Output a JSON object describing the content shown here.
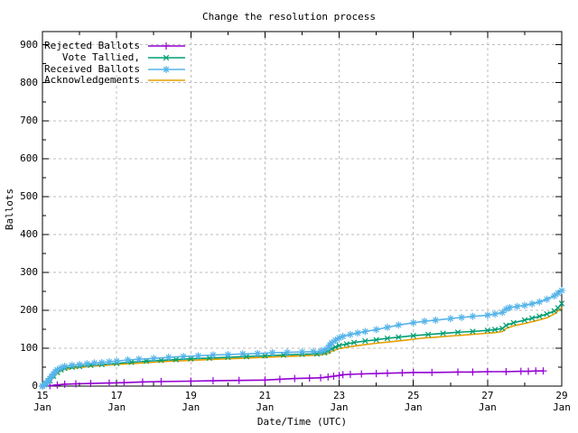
{
  "window": {
    "background": "#ffffff",
    "text_color": "#000000"
  },
  "chart_data": {
    "type": "line",
    "title": "Change the resolution process",
    "xlabel": "Date/Time (UTC)",
    "ylabel": "Ballots",
    "xlim": [
      15,
      29
    ],
    "ylim": [
      0,
      935
    ],
    "grid": {
      "on": true,
      "dashed": true,
      "color": "#bdbdbd"
    },
    "legend_position": "top-left",
    "x_axis": {
      "month_label": "Jan",
      "labeled_days": [
        15,
        17,
        19,
        21,
        23,
        25,
        27,
        29
      ],
      "minor_days": [
        16,
        18,
        20,
        22,
        24,
        26,
        28
      ],
      "grid_days": [
        17,
        19,
        21,
        23,
        25,
        27
      ]
    },
    "y_axis": {
      "major_ticks": [
        0,
        100,
        200,
        300,
        400,
        500,
        600,
        700,
        800,
        900
      ],
      "minor_ticks": [
        50,
        150,
        250,
        350,
        450,
        550,
        650,
        750,
        850
      ],
      "grid_values": [
        100,
        200,
        300,
        400,
        500,
        600,
        700,
        800,
        900
      ]
    },
    "series": [
      {
        "name": "Rejected Ballots",
        "color": "#9400D3",
        "marker": "plus",
        "points": [
          [
            15,
            0
          ],
          [
            15.2,
            1
          ],
          [
            15.4,
            3
          ],
          [
            15.6,
            5
          ],
          [
            15.9,
            6
          ],
          [
            16.3,
            7
          ],
          [
            16.8,
            8
          ],
          [
            17.2,
            9
          ],
          [
            17.7,
            11
          ],
          [
            18.2,
            12
          ],
          [
            19,
            13
          ],
          [
            19.6,
            14
          ],
          [
            20.3,
            15
          ],
          [
            21,
            16
          ],
          [
            21.4,
            18
          ],
          [
            21.8,
            20
          ],
          [
            22.2,
            21
          ],
          [
            22.5,
            22
          ],
          [
            22.7,
            24
          ],
          [
            22.85,
            26
          ],
          [
            23,
            28
          ],
          [
            23.1,
            30
          ],
          [
            23.3,
            31
          ],
          [
            23.6,
            32
          ],
          [
            24,
            33
          ],
          [
            24.3,
            34
          ],
          [
            24.7,
            35
          ],
          [
            25,
            36
          ],
          [
            25.5,
            36
          ],
          [
            26.2,
            37
          ],
          [
            26.6,
            37
          ],
          [
            27,
            38
          ],
          [
            27.5,
            38
          ],
          [
            27.9,
            39
          ],
          [
            28.1,
            39
          ],
          [
            28.3,
            40
          ],
          [
            28.5,
            40
          ]
        ]
      },
      {
        "name": "Vote Tallied,",
        "color": "#009E73",
        "marker": "cross",
        "points": [
          [
            15,
            0
          ],
          [
            15.1,
            5
          ],
          [
            15.2,
            14
          ],
          [
            15.3,
            26
          ],
          [
            15.4,
            36
          ],
          [
            15.5,
            43
          ],
          [
            15.6,
            47
          ],
          [
            15.8,
            50
          ],
          [
            16,
            52
          ],
          [
            16.3,
            55
          ],
          [
            16.6,
            57
          ],
          [
            17,
            60
          ],
          [
            17.4,
            63
          ],
          [
            17.8,
            66
          ],
          [
            18.2,
            68
          ],
          [
            18.6,
            70
          ],
          [
            19,
            72
          ],
          [
            19.5,
            74
          ],
          [
            20,
            76
          ],
          [
            20.5,
            78
          ],
          [
            21,
            80
          ],
          [
            21.5,
            82
          ],
          [
            22,
            84
          ],
          [
            22.4,
            85
          ],
          [
            22.6,
            88
          ],
          [
            22.7,
            92
          ],
          [
            22.8,
            98
          ],
          [
            22.9,
            103
          ],
          [
            23,
            107
          ],
          [
            23.2,
            111
          ],
          [
            23.4,
            115
          ],
          [
            23.7,
            119
          ],
          [
            24,
            122
          ],
          [
            24.3,
            126
          ],
          [
            24.6,
            129
          ],
          [
            25,
            133
          ],
          [
            25.4,
            136
          ],
          [
            25.8,
            139
          ],
          [
            26.2,
            142
          ],
          [
            26.6,
            144
          ],
          [
            27,
            147
          ],
          [
            27.2,
            149
          ],
          [
            27.4,
            152
          ],
          [
            27.5,
            160
          ],
          [
            27.7,
            167
          ],
          [
            28,
            174
          ],
          [
            28.2,
            179
          ],
          [
            28.4,
            184
          ],
          [
            28.6,
            190
          ],
          [
            28.8,
            198
          ],
          [
            28.9,
            206
          ],
          [
            29,
            218
          ]
        ]
      },
      {
        "name": "Received Ballots",
        "color": "#56B4E9",
        "marker": "star",
        "points": [
          [
            15,
            0
          ],
          [
            15.05,
            3
          ],
          [
            15.1,
            8
          ],
          [
            15.15,
            14
          ],
          [
            15.2,
            20
          ],
          [
            15.25,
            26
          ],
          [
            15.3,
            32
          ],
          [
            15.35,
            38
          ],
          [
            15.4,
            43
          ],
          [
            15.5,
            48
          ],
          [
            15.6,
            52
          ],
          [
            15.8,
            55
          ],
          [
            16,
            57
          ],
          [
            16.2,
            59
          ],
          [
            16.4,
            61
          ],
          [
            16.6,
            62
          ],
          [
            16.8,
            64
          ],
          [
            17,
            66
          ],
          [
            17.3,
            69
          ],
          [
            17.6,
            71
          ],
          [
            18,
            73
          ],
          [
            18.4,
            76
          ],
          [
            18.8,
            78
          ],
          [
            19.2,
            80
          ],
          [
            19.6,
            82
          ],
          [
            20,
            83
          ],
          [
            20.4,
            85
          ],
          [
            20.8,
            86
          ],
          [
            21.2,
            88
          ],
          [
            21.6,
            89
          ],
          [
            22,
            90
          ],
          [
            22.3,
            91
          ],
          [
            22.5,
            92
          ],
          [
            22.6,
            95
          ],
          [
            22.7,
            101
          ],
          [
            22.75,
            108
          ],
          [
            22.8,
            114
          ],
          [
            22.9,
            121
          ],
          [
            23,
            127
          ],
          [
            23.1,
            131
          ],
          [
            23.3,
            136
          ],
          [
            23.5,
            140
          ],
          [
            23.7,
            144
          ],
          [
            24,
            149
          ],
          [
            24.3,
            155
          ],
          [
            24.6,
            161
          ],
          [
            25,
            167
          ],
          [
            25.3,
            171
          ],
          [
            25.6,
            174
          ],
          [
            26,
            178
          ],
          [
            26.3,
            181
          ],
          [
            26.6,
            184
          ],
          [
            27,
            187
          ],
          [
            27.2,
            190
          ],
          [
            27.4,
            194
          ],
          [
            27.5,
            203
          ],
          [
            27.6,
            207
          ],
          [
            27.8,
            210
          ],
          [
            28,
            213
          ],
          [
            28.2,
            217
          ],
          [
            28.4,
            222
          ],
          [
            28.6,
            229
          ],
          [
            28.8,
            238
          ],
          [
            28.9,
            245
          ],
          [
            29,
            252
          ]
        ]
      },
      {
        "name": "Acknowledgements",
        "color": "#E69F00",
        "marker": "none",
        "points": [
          [
            15,
            0
          ],
          [
            15.1,
            4
          ],
          [
            15.2,
            12
          ],
          [
            15.3,
            23
          ],
          [
            15.4,
            33
          ],
          [
            15.5,
            40
          ],
          [
            15.6,
            44
          ],
          [
            15.8,
            47
          ],
          [
            16,
            49
          ],
          [
            16.3,
            52
          ],
          [
            16.6,
            54
          ],
          [
            17,
            57
          ],
          [
            17.5,
            60
          ],
          [
            18,
            63
          ],
          [
            18.5,
            66
          ],
          [
            19,
            68
          ],
          [
            19.5,
            70
          ],
          [
            20,
            72
          ],
          [
            20.5,
            74
          ],
          [
            21,
            76
          ],
          [
            21.5,
            78
          ],
          [
            22,
            80
          ],
          [
            22.5,
            82
          ],
          [
            22.7,
            86
          ],
          [
            22.8,
            92
          ],
          [
            23,
            99
          ],
          [
            23.3,
            104
          ],
          [
            23.6,
            108
          ],
          [
            24,
            113
          ],
          [
            24.4,
            117
          ],
          [
            24.8,
            121
          ],
          [
            25.2,
            126
          ],
          [
            25.6,
            129
          ],
          [
            26,
            132
          ],
          [
            26.4,
            135
          ],
          [
            26.8,
            138
          ],
          [
            27.2,
            141
          ],
          [
            27.4,
            144
          ],
          [
            27.5,
            152
          ],
          [
            27.7,
            159
          ],
          [
            28,
            165
          ],
          [
            28.3,
            172
          ],
          [
            28.6,
            180
          ],
          [
            28.8,
            190
          ],
          [
            29,
            207
          ]
        ]
      }
    ]
  }
}
